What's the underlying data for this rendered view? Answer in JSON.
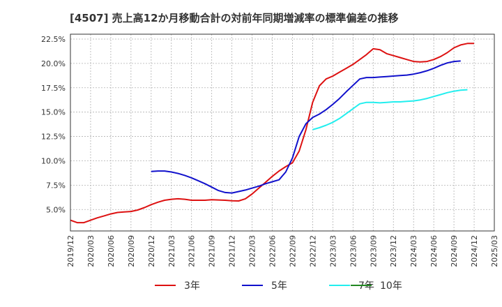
{
  "chart_data": {
    "type": "line",
    "title": "[4507]  売上高12か月移動合計の対前年同期増減率の標準偏差の推移",
    "xlabel": "",
    "ylabel": "",
    "ylim": [
      2.8,
      23.0
    ],
    "y_ticks": [
      5.0,
      7.5,
      10.0,
      12.5,
      15.0,
      17.5,
      20.0,
      22.5
    ],
    "y_tick_labels": [
      "5.0%",
      "7.5%",
      "10.0%",
      "12.5%",
      "15.0%",
      "17.5%",
      "20.0%",
      "22.5%"
    ],
    "x_start": "2019-12",
    "x_end": "2025-03",
    "x_tick_labels": [
      "2019/12",
      "2020/03",
      "2020/06",
      "2020/09",
      "2020/12",
      "2021/03",
      "2021/06",
      "2021/09",
      "2021/12",
      "2022/03",
      "2022/06",
      "2022/09",
      "2022/12",
      "2023/03",
      "2023/06",
      "2023/09",
      "2023/12",
      "2024/03",
      "2024/06",
      "2024/09",
      "2024/12",
      "2025/03"
    ],
    "grid": true,
    "legend_position": "bottom",
    "series": [
      {
        "name": "3年",
        "color": "#dd1111",
        "start": "2019-12",
        "values": [
          3.9,
          3.65,
          3.65,
          3.9,
          4.15,
          4.35,
          4.55,
          4.7,
          4.75,
          4.8,
          4.95,
          5.2,
          5.5,
          5.75,
          5.95,
          6.05,
          6.1,
          6.05,
          5.95,
          5.95,
          5.95,
          6.0,
          5.98,
          5.95,
          5.9,
          5.88,
          6.1,
          6.6,
          7.2,
          7.8,
          8.4,
          8.95,
          9.4,
          9.8,
          11.0,
          13.2,
          16.0,
          17.7,
          18.4,
          18.7,
          19.1,
          19.5,
          19.9,
          20.4,
          20.9,
          21.5,
          21.4,
          21.0,
          20.8,
          20.6,
          20.4,
          20.2,
          20.15,
          20.2,
          20.4,
          20.7,
          21.1,
          21.6,
          21.9,
          22.05,
          22.05
        ]
      },
      {
        "name": "5年",
        "color": "#1111cc",
        "start": "2020-12",
        "values": [
          8.9,
          8.95,
          8.95,
          8.85,
          8.7,
          8.5,
          8.25,
          7.95,
          7.65,
          7.3,
          6.95,
          6.75,
          6.7,
          6.85,
          7.0,
          7.2,
          7.4,
          7.65,
          7.85,
          8.05,
          8.85,
          10.3,
          12.5,
          13.8,
          14.45,
          14.8,
          15.25,
          15.8,
          16.4,
          17.1,
          17.75,
          18.4,
          18.55,
          18.55,
          18.6,
          18.65,
          18.7,
          18.75,
          18.8,
          18.9,
          19.05,
          19.25,
          19.5,
          19.8,
          20.05,
          20.2,
          20.25
        ]
      },
      {
        "name": "7年",
        "color": "#22eeee",
        "start": "2022-12",
        "values": [
          13.2,
          13.4,
          13.65,
          13.95,
          14.35,
          14.85,
          15.35,
          15.85,
          16.0,
          16.0,
          15.95,
          16.0,
          16.05,
          16.05,
          16.1,
          16.15,
          16.25,
          16.4,
          16.6,
          16.8,
          17.0,
          17.15,
          17.25,
          17.3
        ]
      },
      {
        "name": "10年",
        "color": "#228822",
        "start": "2024-12",
        "values": []
      }
    ]
  }
}
